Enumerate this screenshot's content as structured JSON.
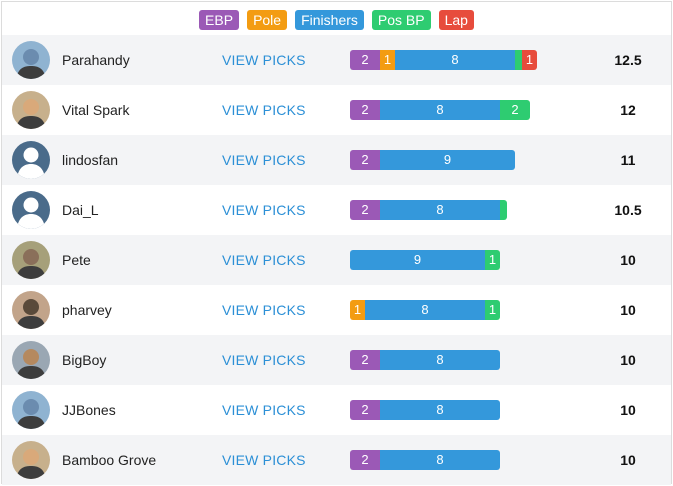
{
  "colors": {
    "ebp": "#9b59b6",
    "pole": "#f39c12",
    "finishers": "#3498db",
    "pos_bp": "#2ecc71",
    "lap": "#e74c3c",
    "link": "#2b8fd6"
  },
  "legend": [
    {
      "key": "ebp",
      "label": "EBP"
    },
    {
      "key": "pole",
      "label": "Pole"
    },
    {
      "key": "finishers",
      "label": "Finishers"
    },
    {
      "key": "pos_bp",
      "label": "Pos BP"
    },
    {
      "key": "lap",
      "label": "Lap"
    }
  ],
  "view_picks_label": "VIEW PICKS",
  "rows": [
    {
      "name": "Parahandy",
      "avatar": "photo-avatar",
      "total": "12.5",
      "segments": [
        {
          "key": "ebp",
          "label": "2",
          "value": 2
        },
        {
          "key": "pole",
          "label": "1",
          "value": 1
        },
        {
          "key": "finishers",
          "label": "8",
          "value": 8
        },
        {
          "key": "pos_bp",
          "label": "",
          "value": 0.5
        },
        {
          "key": "lap",
          "label": "1",
          "value": 1
        }
      ]
    },
    {
      "name": "Vital Spark",
      "avatar": "photo-avatar",
      "total": "12",
      "segments": [
        {
          "key": "ebp",
          "label": "2",
          "value": 2
        },
        {
          "key": "finishers",
          "label": "8",
          "value": 8
        },
        {
          "key": "pos_bp",
          "label": "2",
          "value": 2
        }
      ]
    },
    {
      "name": "lindosfan",
      "avatar": "default-user-icon",
      "total": "11",
      "segments": [
        {
          "key": "ebp",
          "label": "2",
          "value": 2
        },
        {
          "key": "finishers",
          "label": "9",
          "value": 9
        }
      ]
    },
    {
      "name": "Dai_L",
      "avatar": "default-user-icon",
      "total": "10.5",
      "segments": [
        {
          "key": "ebp",
          "label": "2",
          "value": 2
        },
        {
          "key": "finishers",
          "label": "8",
          "value": 8
        },
        {
          "key": "pos_bp",
          "label": "",
          "value": 0.5
        }
      ]
    },
    {
      "name": "Pete",
      "avatar": "photo-avatar",
      "total": "10",
      "segments": [
        {
          "key": "finishers",
          "label": "9",
          "value": 9
        },
        {
          "key": "pos_bp",
          "label": "1",
          "value": 1
        }
      ]
    },
    {
      "name": "pharvey",
      "avatar": "photo-avatar",
      "total": "10",
      "segments": [
        {
          "key": "pole",
          "label": "1",
          "value": 1
        },
        {
          "key": "finishers",
          "label": "8",
          "value": 8
        },
        {
          "key": "pos_bp",
          "label": "1",
          "value": 1
        }
      ]
    },
    {
      "name": "BigBoy",
      "avatar": "photo-avatar",
      "total": "10",
      "segments": [
        {
          "key": "ebp",
          "label": "2",
          "value": 2
        },
        {
          "key": "finishers",
          "label": "8",
          "value": 8
        }
      ]
    },
    {
      "name": "JJBones",
      "avatar": "photo-avatar",
      "total": "10",
      "segments": [
        {
          "key": "ebp",
          "label": "2",
          "value": 2
        },
        {
          "key": "finishers",
          "label": "8",
          "value": 8
        }
      ]
    },
    {
      "name": "Bamboo Grove",
      "avatar": "photo-avatar",
      "total": "10",
      "segments": [
        {
          "key": "ebp",
          "label": "2",
          "value": 2
        },
        {
          "key": "finishers",
          "label": "8",
          "value": 8
        }
      ]
    }
  ]
}
